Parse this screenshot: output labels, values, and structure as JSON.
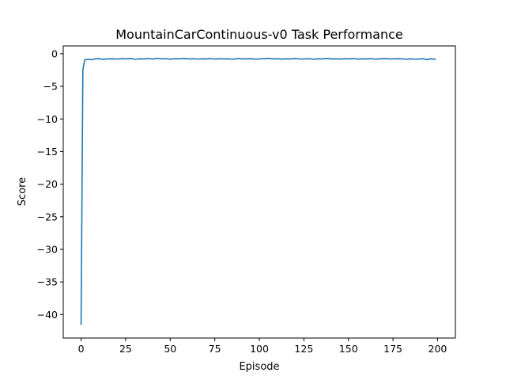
{
  "chart_data": {
    "type": "line",
    "title": "MountainCarContinuous-v0 Task Performance",
    "xlabel": "Episode",
    "ylabel": "Score",
    "xlim": [
      -10,
      210
    ],
    "ylim": [
      -43.6,
      1.2
    ],
    "xticks": [
      0,
      25,
      50,
      75,
      100,
      125,
      150,
      175,
      200
    ],
    "yticks": [
      0,
      -5,
      -10,
      -15,
      -20,
      -25,
      -30,
      -35,
      -40
    ],
    "grid": false,
    "line_color": "#1f77b4",
    "series": [
      {
        "x": [
          0,
          1,
          2,
          4,
          6,
          8,
          10,
          12,
          15,
          18,
          20,
          23,
          25,
          28,
          30,
          33,
          35,
          38,
          40,
          43,
          45,
          48,
          50,
          53,
          55,
          58,
          60,
          63,
          65,
          68,
          70,
          73,
          75,
          78,
          80,
          83,
          85,
          88,
          90,
          93,
          95,
          98,
          100,
          103,
          105,
          108,
          110,
          113,
          115,
          118,
          120,
          123,
          125,
          128,
          130,
          133,
          135,
          138,
          140,
          143,
          145,
          148,
          150,
          153,
          155,
          158,
          160,
          163,
          165,
          168,
          170,
          173,
          175,
          178,
          180,
          183,
          185,
          188,
          190,
          192,
          194,
          196,
          198,
          199
        ],
        "values": [
          -41.6,
          -2.5,
          -0.95,
          -0.85,
          -0.9,
          -0.8,
          -0.75,
          -0.85,
          -0.8,
          -0.78,
          -0.82,
          -0.75,
          -0.8,
          -0.72,
          -0.85,
          -0.78,
          -0.8,
          -0.74,
          -0.82,
          -0.7,
          -0.8,
          -0.76,
          -0.84,
          -0.75,
          -0.8,
          -0.72,
          -0.8,
          -0.76,
          -0.82,
          -0.78,
          -0.8,
          -0.74,
          -0.82,
          -0.76,
          -0.8,
          -0.78,
          -0.85,
          -0.74,
          -0.8,
          -0.78,
          -0.76,
          -0.82,
          -0.8,
          -0.75,
          -0.7,
          -0.8,
          -0.76,
          -0.82,
          -0.78,
          -0.8,
          -0.74,
          -0.82,
          -0.8,
          -0.76,
          -0.84,
          -0.78,
          -0.8,
          -0.72,
          -0.8,
          -0.78,
          -0.82,
          -0.76,
          -0.8,
          -0.74,
          -0.82,
          -0.78,
          -0.8,
          -0.76,
          -0.82,
          -0.78,
          -0.74,
          -0.8,
          -0.78,
          -0.76,
          -0.8,
          -0.82,
          -0.78,
          -0.85,
          -0.8,
          -0.76,
          -0.9,
          -0.78,
          -0.82,
          -0.85
        ]
      }
    ]
  }
}
